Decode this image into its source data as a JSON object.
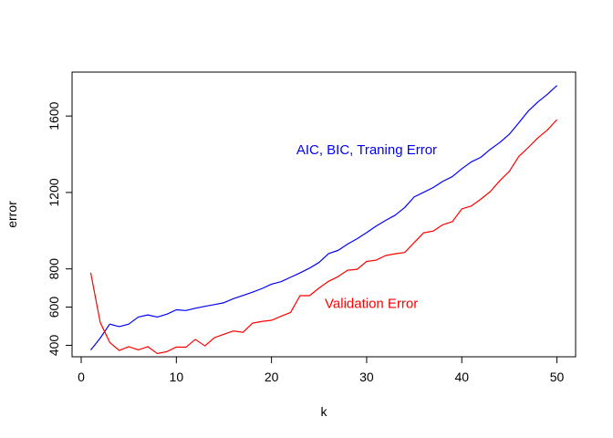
{
  "chart_data": {
    "type": "line",
    "title": "",
    "xlabel": "k",
    "ylabel": "error",
    "xlim": [
      -0.96,
      51.96
    ],
    "ylim": [
      340,
      1830
    ],
    "xticks": [
      0,
      10,
      20,
      30,
      40,
      50
    ],
    "yticks": [
      400,
      600,
      800,
      1200,
      1600
    ],
    "grid": false,
    "legend": "none",
    "series": [
      {
        "color": "#0000FF",
        "x": [
          1,
          2,
          3,
          4,
          5,
          6,
          7,
          8,
          9,
          10,
          11,
          12,
          13,
          14,
          15,
          16,
          17,
          18,
          19,
          20,
          21,
          22,
          23,
          24,
          25,
          26,
          27,
          28,
          29,
          30,
          31,
          32,
          33,
          34,
          35,
          36,
          37,
          38,
          39,
          40,
          41,
          42,
          43,
          44,
          45,
          46,
          47,
          48,
          49,
          50
        ],
        "y": [
          375,
          438,
          511,
          498,
          511,
          548,
          559,
          548,
          563,
          586,
          582,
          594,
          604,
          613,
          623,
          644,
          661,
          678,
          697,
          720,
          733,
          756,
          779,
          804,
          834,
          880,
          897,
          930,
          958,
          990,
          1024,
          1054,
          1081,
          1121,
          1177,
          1201,
          1226,
          1258,
          1283,
          1324,
          1360,
          1384,
          1426,
          1462,
          1505,
          1565,
          1627,
          1674,
          1714,
          1760
        ]
      },
      {
        "color": "#FF0000",
        "x": [
          1,
          2,
          3,
          4,
          5,
          6,
          7,
          8,
          9,
          10,
          11,
          12,
          13,
          14,
          15,
          16,
          17,
          18,
          19,
          20,
          21,
          22,
          23,
          24,
          25,
          26,
          27,
          28,
          29,
          30,
          31,
          32,
          33,
          34,
          35,
          36,
          37,
          38,
          39,
          40,
          41,
          42,
          43,
          44,
          45,
          46,
          47,
          48,
          49,
          50
        ],
        "y": [
          780,
          520,
          415,
          373,
          393,
          376,
          393,
          357,
          367,
          391,
          390,
          431,
          397,
          440,
          458,
          475,
          468,
          516,
          525,
          531,
          552,
          572,
          660,
          660,
          700,
          735,
          760,
          793,
          798,
          839,
          846,
          870,
          879,
          886,
          938,
          989,
          998,
          1031,
          1047,
          1114,
          1129,
          1165,
          1205,
          1262,
          1311,
          1389,
          1436,
          1486,
          1527,
          1581
        ]
      }
    ],
    "annotations": [
      {
        "text": "AIC, BIC, Traning Error",
        "color": "#0000FF",
        "x": 30,
        "y": 1400
      },
      {
        "text": "Validation Error",
        "color": "#FF0000",
        "x": 30.5,
        "y": 596
      }
    ]
  }
}
